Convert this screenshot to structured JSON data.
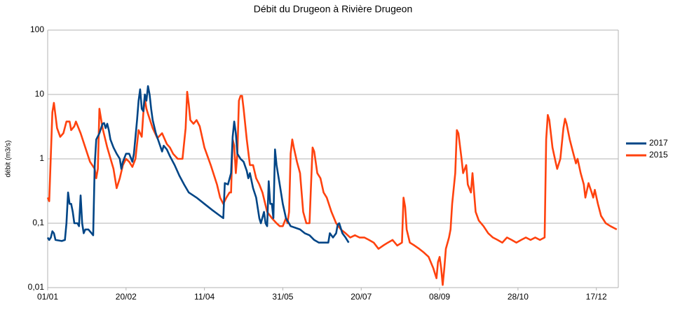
{
  "chart_data": {
    "type": "line",
    "title": "Débit du Drugeon à Rivière Drugeon",
    "y_label": "débit (m3/s)",
    "log_scale": true,
    "grid": true,
    "legend": "right",
    "xlim": [
      0,
      364
    ],
    "xticks": [
      {
        "value": 0,
        "label": "01/01"
      },
      {
        "value": 50,
        "label": "20/02"
      },
      {
        "value": 100,
        "label": "11/04"
      },
      {
        "value": 150,
        "label": "31/05"
      },
      {
        "value": 200,
        "label": "20/07"
      },
      {
        "value": 250,
        "label": "08/09"
      },
      {
        "value": 300,
        "label": "28/10"
      },
      {
        "value": 350,
        "label": "17/12"
      }
    ],
    "ylim": [
      0.01,
      100
    ],
    "yticks": [
      {
        "value": 0.01,
        "label": "0,01"
      },
      {
        "value": 0.1,
        "label": "0,1"
      },
      1,
      10,
      100
    ],
    "series": [
      {
        "name": "2017",
        "color": "#004586",
        "x": [
          0,
          1,
          2,
          3,
          4,
          5,
          7,
          9,
          11,
          12,
          13,
          14,
          15,
          16,
          17,
          19,
          20,
          21,
          22,
          23,
          24,
          26,
          28,
          29,
          30,
          31,
          33,
          35,
          36,
          37,
          38,
          39,
          40,
          42,
          44,
          46,
          47,
          48,
          50,
          52,
          54,
          55,
          57,
          58,
          59,
          60,
          61,
          62,
          63,
          64,
          65,
          66,
          67,
          69,
          71,
          73,
          74,
          76,
          78,
          81,
          84,
          87,
          90,
          95,
          100,
          105,
          110,
          112,
          113,
          115,
          117,
          118,
          119,
          120,
          121,
          123,
          125,
          127,
          128,
          129,
          131,
          133,
          135,
          136,
          138,
          139,
          140,
          141,
          142,
          143,
          144,
          145,
          146,
          148,
          150,
          152,
          155,
          158,
          161,
          164,
          167,
          170,
          173,
          176,
          179,
          180,
          182,
          184,
          185,
          186,
          188,
          190,
          192
        ],
        "values": [
          0.06,
          0.055,
          0.06,
          0.075,
          0.07,
          0.055,
          0.054,
          0.053,
          0.055,
          0.1,
          0.3,
          0.2,
          0.2,
          0.15,
          0.1,
          0.1,
          0.09,
          0.27,
          0.1,
          0.07,
          0.08,
          0.08,
          0.07,
          0.065,
          0.8,
          2,
          2.5,
          3.5,
          3.6,
          3,
          3.5,
          2.8,
          2,
          1.5,
          1.2,
          1.0,
          0.7,
          0.9,
          1.2,
          1.2,
          0.9,
          1.2,
          4,
          8,
          12,
          6,
          5.5,
          10,
          8,
          13.5,
          10,
          6,
          4,
          2.5,
          1.8,
          1.3,
          1.6,
          1.4,
          1.1,
          0.8,
          0.55,
          0.4,
          0.3,
          0.25,
          0.2,
          0.16,
          0.13,
          0.12,
          0.42,
          0.4,
          0.6,
          2.2,
          3.8,
          2.5,
          1.2,
          1.0,
          0.9,
          0.65,
          0.5,
          0.6,
          0.35,
          0.25,
          0.12,
          0.1,
          0.15,
          0.1,
          0.09,
          0.45,
          0.2,
          0.2,
          0.12,
          1.4,
          0.8,
          0.4,
          0.2,
          0.12,
          0.09,
          0.085,
          0.08,
          0.07,
          0.065,
          0.055,
          0.05,
          0.05,
          0.05,
          0.07,
          0.06,
          0.07,
          0.095,
          0.1,
          0.07,
          0.06,
          0.05
        ]
      },
      {
        "name": "2015",
        "color": "#ff420e",
        "x": [
          0,
          1,
          3,
          4,
          6,
          8,
          10,
          12,
          14,
          15,
          17,
          18,
          21,
          24,
          27,
          30,
          31,
          32,
          33,
          35,
          38,
          42,
          44,
          46,
          48,
          50,
          52,
          54,
          56,
          58,
          60,
          61,
          62,
          63,
          64,
          67,
          70,
          73,
          76,
          78,
          80,
          83,
          86,
          88,
          89,
          90,
          91,
          93,
          95,
          97,
          100,
          104,
          108,
          110,
          112,
          114,
          116,
          117,
          118,
          119,
          120,
          121,
          122,
          123,
          124,
          125,
          127,
          129,
          131,
          133,
          135,
          137,
          140,
          143,
          146,
          148,
          150,
          152,
          153,
          154,
          155,
          156,
          157,
          159,
          161,
          163,
          165,
          167,
          168,
          169,
          170,
          172,
          174,
          176,
          178,
          181,
          184,
          187,
          190,
          193,
          196,
          199,
          202,
          205,
          208,
          211,
          214,
          217,
          220,
          223,
          226,
          227,
          228,
          229,
          231,
          234,
          237,
          240,
          243,
          246,
          248,
          249,
          250,
          251,
          252,
          253,
          254,
          256,
          257,
          258,
          260,
          261,
          262,
          264,
          265,
          267,
          268,
          270,
          271,
          273,
          275,
          278,
          281,
          284,
          287,
          290,
          293,
          296,
          299,
          302,
          305,
          308,
          311,
          314,
          317,
          318,
          319,
          320,
          322,
          324,
          325,
          327,
          329,
          330,
          331,
          333,
          335,
          337,
          338,
          340,
          342,
          343,
          345,
          347,
          348,
          349,
          351,
          353,
          356,
          359,
          363
        ],
        "values": [
          0.25,
          0.22,
          5.3,
          7.4,
          3,
          2.2,
          2.5,
          3.8,
          3.8,
          2.8,
          3.2,
          3.8,
          2.5,
          1.5,
          0.9,
          0.7,
          0.5,
          0.7,
          6,
          3,
          1.5,
          0.7,
          0.35,
          0.5,
          0.8,
          1,
          0.9,
          0.75,
          1,
          2.8,
          2.2,
          5,
          8.5,
          6,
          5,
          3,
          2.1,
          2.5,
          1.7,
          1.5,
          1.2,
          1.0,
          1.0,
          3,
          11,
          7,
          4,
          3.5,
          4,
          3.2,
          1.5,
          0.8,
          0.4,
          0.25,
          0.2,
          0.25,
          0.3,
          0.3,
          2,
          1.6,
          0.6,
          1.2,
          8,
          9.5,
          9.5,
          6,
          2,
          0.8,
          0.8,
          0.5,
          0.4,
          0.3,
          0.15,
          0.12,
          0.1,
          0.09,
          0.09,
          0.12,
          0.1,
          0.15,
          1.2,
          2,
          1.5,
          0.9,
          0.6,
          0.15,
          0.1,
          0.1,
          0.4,
          1.5,
          1.3,
          0.6,
          0.5,
          0.3,
          0.25,
          0.15,
          0.1,
          0.08,
          0.07,
          0.06,
          0.065,
          0.06,
          0.06,
          0.055,
          0.05,
          0.04,
          0.045,
          0.05,
          0.055,
          0.045,
          0.05,
          0.25,
          0.18,
          0.08,
          0.05,
          0.045,
          0.04,
          0.035,
          0.03,
          0.02,
          0.014,
          0.025,
          0.03,
          0.02,
          0.011,
          0.02,
          0.04,
          0.06,
          0.08,
          0.2,
          0.6,
          2.8,
          2.5,
          1.0,
          0.6,
          0.8,
          0.4,
          0.3,
          0.6,
          0.15,
          0.11,
          0.09,
          0.07,
          0.06,
          0.055,
          0.05,
          0.06,
          0.055,
          0.05,
          0.055,
          0.06,
          0.055,
          0.06,
          0.055,
          0.06,
          2,
          4.8,
          4,
          1.5,
          0.9,
          0.7,
          1,
          3,
          4.2,
          3.5,
          2,
          1.3,
          0.85,
          1.0,
          0.6,
          0.4,
          0.25,
          0.42,
          0.3,
          0.25,
          0.33,
          0.2,
          0.13,
          0.1,
          0.09,
          0.08
        ]
      }
    ]
  }
}
